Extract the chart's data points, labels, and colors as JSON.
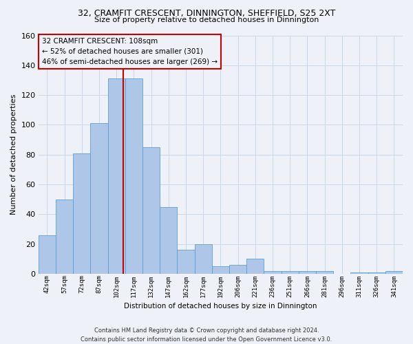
{
  "title1": "32, CRAMFIT CRESCENT, DINNINGTON, SHEFFIELD, S25 2XT",
  "title2": "Size of property relative to detached houses in Dinnington",
  "xlabel": "Distribution of detached houses by size in Dinnington",
  "ylabel": "Number of detached properties",
  "footer1": "Contains HM Land Registry data © Crown copyright and database right 2024.",
  "footer2": "Contains public sector information licensed under the Open Government Licence v3.0.",
  "annotation_line1": "32 CRAMFIT CRESCENT: 108sqm",
  "annotation_line2": "← 52% of detached houses are smaller (301)",
  "annotation_line3": "46% of semi-detached houses are larger (269) →",
  "bar_labels": [
    "42sqm",
    "57sqm",
    "72sqm",
    "87sqm",
    "102sqm",
    "117sqm",
    "132sqm",
    "147sqm",
    "162sqm",
    "177sqm",
    "192sqm",
    "206sqm",
    "221sqm",
    "236sqm",
    "251sqm",
    "266sqm",
    "281sqm",
    "296sqm",
    "311sqm",
    "326sqm",
    "341sqm"
  ],
  "bar_values": [
    26,
    50,
    81,
    101,
    131,
    131,
    85,
    45,
    16,
    20,
    5,
    6,
    10,
    2,
    2,
    2,
    2,
    0,
    1,
    1,
    2
  ],
  "bar_color": "#aec6e8",
  "bar_edge_color": "#5a9fd4",
  "vline_color": "#cc0000",
  "ylim": [
    0,
    160
  ],
  "yticks": [
    0,
    20,
    40,
    60,
    80,
    100,
    120,
    140,
    160
  ],
  "grid_color": "#c8d8e8",
  "annotation_box_color": "#cc0000",
  "background_color": "#eef2f8"
}
